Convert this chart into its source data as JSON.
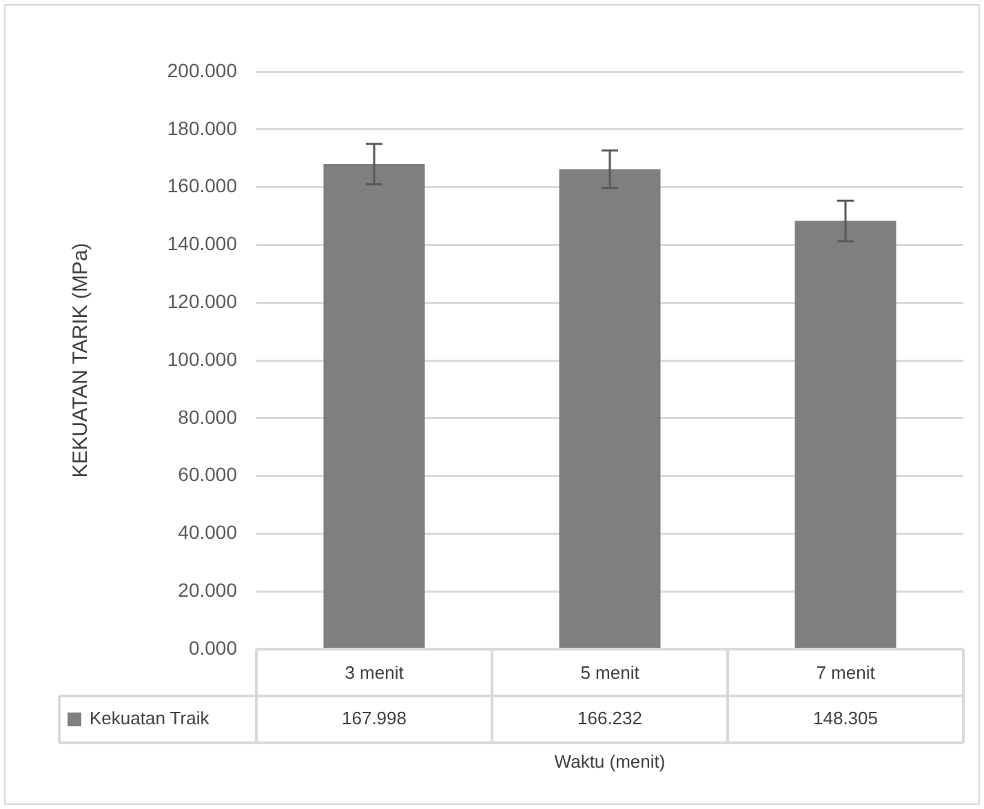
{
  "chart_data": {
    "type": "bar",
    "ylabel": "KEKUATAN TARIK (MPa)",
    "xlabel": "Waktu (menit)",
    "categories": [
      "3 menit",
      "5 menit",
      "7 menit"
    ],
    "series": [
      {
        "name": "Kekuatan Traik",
        "color": "#7f7f7f",
        "values": [
          167.998,
          166.232,
          148.305
        ],
        "errors": [
          7,
          6.5,
          7
        ]
      }
    ],
    "ylim": [
      0,
      200
    ],
    "yticks": [
      {
        "value": 0,
        "label": "0.000"
      },
      {
        "value": 20,
        "label": "20.000"
      },
      {
        "value": 40,
        "label": "40.000"
      },
      {
        "value": 60,
        "label": "60.000"
      },
      {
        "value": 80,
        "label": "80.000"
      },
      {
        "value": 100,
        "label": "100.000"
      },
      {
        "value": 120,
        "label": "120.000"
      },
      {
        "value": 140,
        "label": "140.000"
      },
      {
        "value": 160,
        "label": "160.000"
      },
      {
        "value": 180,
        "label": "180.000"
      },
      {
        "value": 200,
        "label": "200.000"
      }
    ],
    "grid": "y",
    "data_labels": true,
    "legend": "bottom"
  }
}
